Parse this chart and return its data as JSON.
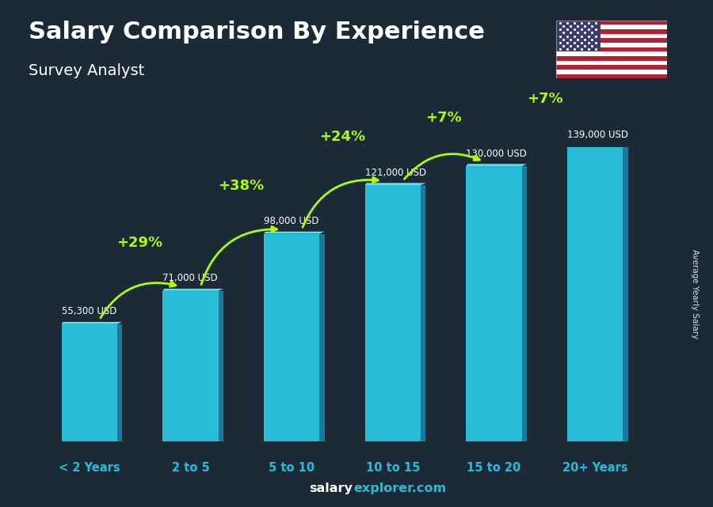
{
  "title": "Salary Comparison By Experience",
  "subtitle": "Survey Analyst",
  "categories": [
    "< 2 Years",
    "2 to 5",
    "5 to 10",
    "10 to 15",
    "15 to 20",
    "20+ Years"
  ],
  "values": [
    55300,
    71000,
    98000,
    121000,
    130000,
    139000
  ],
  "value_labels": [
    "55,300 USD",
    "71,000 USD",
    "98,000 USD",
    "121,000 USD",
    "130,000 USD",
    "139,000 USD"
  ],
  "pct_changes": [
    "+29%",
    "+38%",
    "+24%",
    "+7%",
    "+7%"
  ],
  "bar_color_main": "#29BCD8",
  "bar_color_side": "#1A7A9A",
  "bar_color_top": "#5FE0F0",
  "bg_color": "#1c2a38",
  "title_color": "#FFFFFF",
  "subtitle_color": "#FFFFFF",
  "value_label_color": "#FFFFFF",
  "pct_color": "#AAFF00",
  "cat_label_color": "#29BCD8",
  "ylabel_text": "Average Yearly Salary",
  "footer_salary": "salary",
  "footer_explorer": "explorer.com"
}
